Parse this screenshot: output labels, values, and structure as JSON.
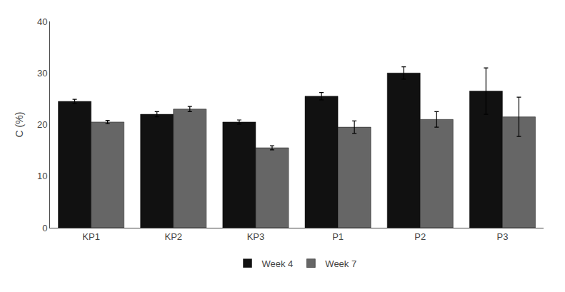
{
  "chart_data": {
    "type": "bar",
    "ylabel": "C (%)",
    "categories": [
      "KP1",
      "KP2",
      "KP3",
      "P1",
      "P2",
      "P3"
    ],
    "series": [
      {
        "name": "Week 4",
        "color": "#111111",
        "values": [
          24.5,
          22.0,
          20.5,
          25.5,
          30.0,
          26.5
        ],
        "errors": [
          0.4,
          0.5,
          0.4,
          0.7,
          1.2,
          4.5
        ]
      },
      {
        "name": "Week 7",
        "color": "#666666",
        "values": [
          20.5,
          23.0,
          15.5,
          19.5,
          21.0,
          21.5
        ],
        "errors": [
          0.3,
          0.5,
          0.4,
          1.2,
          1.5,
          3.8
        ]
      }
    ],
    "ylim": [
      0,
      40
    ],
    "yticks": [
      0,
      10,
      20,
      30,
      40
    ],
    "grid": false,
    "legend": "bottom"
  }
}
